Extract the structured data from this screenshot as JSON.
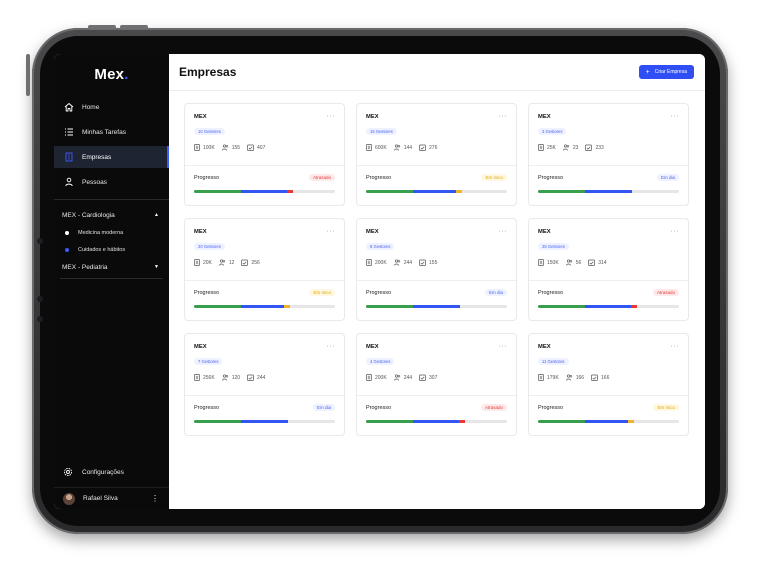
{
  "app": {
    "logo_text": "Mex",
    "logo_dot": "."
  },
  "sidebar": {
    "nav": [
      {
        "label": "Home",
        "icon": "home-icon"
      },
      {
        "label": "Minhas Tarefas",
        "icon": "tasks-icon"
      },
      {
        "label": "Empresas",
        "icon": "building-icon",
        "active": true
      },
      {
        "label": "Pessoas",
        "icon": "person-icon"
      }
    ],
    "groups": [
      {
        "label": "MEX - Cardiologia",
        "expanded": true,
        "items": [
          {
            "label": "Medicina moderna"
          },
          {
            "label": "Cuidados e hábitos"
          }
        ]
      },
      {
        "label": "MEX - Pediatria",
        "expanded": false
      }
    ],
    "settings_label": "Configurações",
    "user_name": "Rafael Silva"
  },
  "header": {
    "title": "Empresas",
    "create_button": "Criar Empresa"
  },
  "cards": [
    {
      "title": "MEX",
      "managers": "10 Gestores",
      "budget": "100K",
      "people": "155",
      "tasks": "407",
      "progress_label": "Progresso",
      "status": "Atrasado",
      "status_type": "late"
    },
    {
      "title": "MEX",
      "managers": "15 Gestores",
      "budget": "600K",
      "people": "144",
      "tasks": "276",
      "progress_label": "Progresso",
      "status": "Em risco",
      "status_type": "risk"
    },
    {
      "title": "MEX",
      "managers": "3 Gestores",
      "budget": "25K",
      "people": "23",
      "tasks": "233",
      "progress_label": "Progresso",
      "status": "Em dia",
      "status_type": "ok"
    },
    {
      "title": "MEX",
      "managers": "20 Gestores",
      "budget": "20K",
      "people": "12",
      "tasks": "256",
      "progress_label": "Progresso",
      "status": "Em risco",
      "status_type": "risk"
    },
    {
      "title": "MEX",
      "managers": "6 Gestores",
      "budget": "200K",
      "people": "244",
      "tasks": "155",
      "progress_label": "Progresso",
      "status": "Em dia",
      "status_type": "ok"
    },
    {
      "title": "MEX",
      "managers": "25 Gestores",
      "budget": "150K",
      "people": "56",
      "tasks": "314",
      "progress_label": "Progresso",
      "status": "Atrasado",
      "status_type": "late"
    },
    {
      "title": "MEX",
      "managers": "7 Gestores",
      "budget": "256K",
      "people": "120",
      "tasks": "244",
      "progress_label": "Progresso",
      "status": "Em dia",
      "status_type": "ok"
    },
    {
      "title": "MEX",
      "managers": "4 Gestores",
      "budget": "200K",
      "people": "244",
      "tasks": "307",
      "progress_label": "Progresso",
      "status": "Atrasado",
      "status_type": "late"
    },
    {
      "title": "MEX",
      "managers": "11 Gestores",
      "budget": "179K",
      "people": "166",
      "tasks": "166",
      "progress_label": "Progresso",
      "status": "Em risco",
      "status_type": "risk"
    }
  ],
  "colors": {
    "accent": "#2f4ff5",
    "green": "#38a04c",
    "red": "#e53935",
    "yellow": "#f0b429"
  }
}
